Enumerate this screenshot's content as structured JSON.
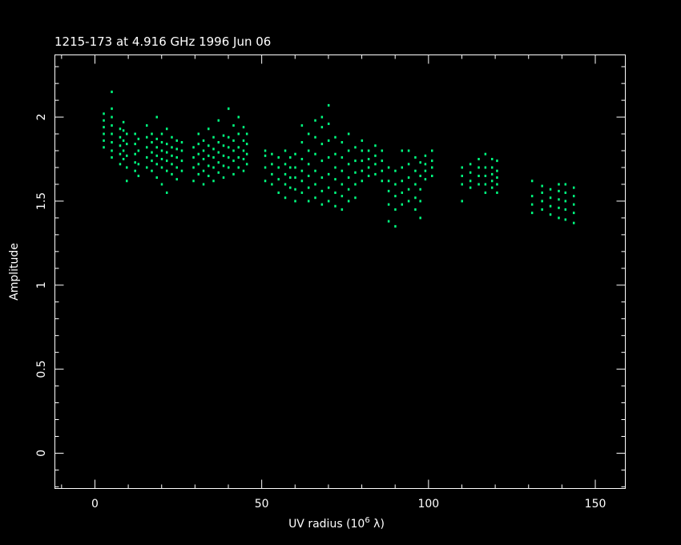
{
  "chart_data": {
    "type": "scatter",
    "title": "1215-173 at 4.916 GHz 1996 Jun 06",
    "xlabel": "UV radius  (10",
    "xlabel_sup": "6",
    "xlabel_end": " λ)",
    "ylabel": "Amplitude",
    "xlim": [
      -12,
      159
    ],
    "ylim": [
      -0.21,
      2.37
    ],
    "x_ticks": [
      0,
      50,
      100,
      150
    ],
    "x_tick_labels": [
      "0",
      "50",
      "100",
      "150"
    ],
    "y_ticks": [
      0,
      0.5,
      1,
      1.5,
      2
    ],
    "y_tick_labels": [
      "0",
      "0.5",
      "1",
      "1.5",
      "2"
    ],
    "x_minor_step": 10,
    "y_minor_step": 0.1,
    "grid": false,
    "colors": {
      "background": "#000000",
      "axes": "#ffffff",
      "points": "#00ff80"
    },
    "strips": [
      {
        "uv": 2.6,
        "amp": [
          1.82,
          1.86,
          1.9,
          1.94,
          1.98,
          2.02
        ]
      },
      {
        "uv": 5.0,
        "amp": [
          1.76,
          1.8,
          1.85,
          1.9,
          1.95,
          2.0,
          2.05,
          2.15
        ]
      },
      {
        "uv": 7.5,
        "amp": [
          1.72,
          1.78,
          1.83,
          1.88,
          1.93
        ]
      },
      {
        "uv": 8.5,
        "amp": [
          1.75,
          1.8,
          1.86,
          1.92,
          1.97
        ]
      },
      {
        "uv": 9.5,
        "amp": [
          1.62,
          1.7,
          1.77,
          1.84,
          1.9
        ]
      },
      {
        "uv": 12,
        "amp": [
          1.68,
          1.73,
          1.78,
          1.84,
          1.9
        ]
      },
      {
        "uv": 13,
        "amp": [
          1.65,
          1.72,
          1.8,
          1.87
        ]
      },
      {
        "uv": 15.5,
        "amp": [
          1.7,
          1.76,
          1.82,
          1.88,
          1.95
        ]
      },
      {
        "uv": 17,
        "amp": [
          1.68,
          1.74,
          1.79,
          1.85,
          1.9
        ]
      },
      {
        "uv": 18.5,
        "amp": [
          1.64,
          1.72,
          1.77,
          1.82,
          1.87,
          2.0
        ]
      },
      {
        "uv": 20,
        "amp": [
          1.6,
          1.7,
          1.75,
          1.8,
          1.85,
          1.9
        ]
      },
      {
        "uv": 21.5,
        "amp": [
          1.55,
          1.68,
          1.74,
          1.79,
          1.84,
          1.93
        ]
      },
      {
        "uv": 23,
        "amp": [
          1.66,
          1.72,
          1.77,
          1.82,
          1.88
        ]
      },
      {
        "uv": 24.5,
        "amp": [
          1.63,
          1.7,
          1.76,
          1.81,
          1.86
        ]
      },
      {
        "uv": 26,
        "amp": [
          1.68,
          1.74,
          1.8,
          1.85
        ]
      },
      {
        "uv": 29.5,
        "amp": [
          1.62,
          1.7,
          1.76,
          1.82
        ]
      },
      {
        "uv": 31,
        "amp": [
          1.66,
          1.72,
          1.78,
          1.84,
          1.9
        ]
      },
      {
        "uv": 32.5,
        "amp": [
          1.6,
          1.68,
          1.75,
          1.8,
          1.86
        ]
      },
      {
        "uv": 34,
        "amp": [
          1.65,
          1.71,
          1.77,
          1.83,
          1.93
        ]
      },
      {
        "uv": 35.5,
        "amp": [
          1.62,
          1.7,
          1.76,
          1.81,
          1.88
        ]
      },
      {
        "uv": 37,
        "amp": [
          1.67,
          1.73,
          1.79,
          1.85,
          1.98
        ]
      },
      {
        "uv": 38.5,
        "amp": [
          1.64,
          1.71,
          1.77,
          1.83,
          1.89
        ]
      },
      {
        "uv": 40,
        "amp": [
          1.7,
          1.76,
          1.82,
          1.88,
          2.05
        ]
      },
      {
        "uv": 41.5,
        "amp": [
          1.66,
          1.74,
          1.8,
          1.86,
          1.95
        ]
      },
      {
        "uv": 43,
        "amp": [
          1.7,
          1.76,
          1.82,
          1.9,
          2.0
        ]
      },
      {
        "uv": 44.5,
        "amp": [
          1.68,
          1.75,
          1.8,
          1.86,
          1.94
        ]
      },
      {
        "uv": 45.5,
        "amp": [
          1.72,
          1.78,
          1.84,
          1.9
        ]
      },
      {
        "uv": 51,
        "amp": [
          1.62,
          1.7,
          1.77,
          1.8
        ]
      },
      {
        "uv": 53,
        "amp": [
          1.6,
          1.66,
          1.72,
          1.78
        ]
      },
      {
        "uv": 55,
        "amp": [
          1.55,
          1.63,
          1.7,
          1.76
        ]
      },
      {
        "uv": 57,
        "amp": [
          1.52,
          1.6,
          1.66,
          1.72,
          1.8
        ]
      },
      {
        "uv": 58.5,
        "amp": [
          1.58,
          1.64,
          1.7,
          1.76
        ]
      },
      {
        "uv": 60,
        "amp": [
          1.5,
          1.57,
          1.64,
          1.7,
          1.78
        ]
      },
      {
        "uv": 62,
        "amp": [
          1.55,
          1.62,
          1.68,
          1.75,
          1.85,
          1.95
        ]
      },
      {
        "uv": 64,
        "amp": [
          1.5,
          1.58,
          1.65,
          1.72,
          1.8,
          1.9
        ]
      },
      {
        "uv": 66,
        "amp": [
          1.52,
          1.6,
          1.68,
          1.78,
          1.88,
          1.98
        ]
      },
      {
        "uv": 68,
        "amp": [
          1.48,
          1.56,
          1.64,
          1.74,
          1.84,
          1.94,
          2.0
        ]
      },
      {
        "uv": 70,
        "amp": [
          1.5,
          1.58,
          1.66,
          1.76,
          1.86,
          1.96,
          2.07
        ]
      },
      {
        "uv": 72,
        "amp": [
          1.47,
          1.55,
          1.63,
          1.7,
          1.78,
          1.88
        ]
      },
      {
        "uv": 74,
        "amp": [
          1.45,
          1.53,
          1.6,
          1.68,
          1.76,
          1.85
        ]
      },
      {
        "uv": 76,
        "amp": [
          1.5,
          1.57,
          1.64,
          1.72,
          1.8,
          1.9
        ]
      },
      {
        "uv": 78,
        "amp": [
          1.52,
          1.6,
          1.67,
          1.74,
          1.82
        ]
      },
      {
        "uv": 80,
        "amp": [
          1.62,
          1.68,
          1.74,
          1.8,
          1.86
        ]
      },
      {
        "uv": 82,
        "amp": [
          1.65,
          1.7,
          1.75,
          1.8
        ]
      },
      {
        "uv": 84,
        "amp": [
          1.66,
          1.72,
          1.77,
          1.83
        ]
      },
      {
        "uv": 86,
        "amp": [
          1.62,
          1.68,
          1.74,
          1.8
        ]
      },
      {
        "uv": 88,
        "amp": [
          1.38,
          1.48,
          1.56,
          1.62,
          1.7
        ]
      },
      {
        "uv": 90,
        "amp": [
          1.35,
          1.45,
          1.53,
          1.6,
          1.68
        ]
      },
      {
        "uv": 92,
        "amp": [
          1.48,
          1.55,
          1.62,
          1.7,
          1.8
        ]
      },
      {
        "uv": 94,
        "amp": [
          1.5,
          1.57,
          1.64,
          1.72,
          1.8
        ]
      },
      {
        "uv": 96,
        "amp": [
          1.45,
          1.52,
          1.6,
          1.68,
          1.76
        ]
      },
      {
        "uv": 97.5,
        "amp": [
          1.4,
          1.5,
          1.57,
          1.65,
          1.73
        ]
      },
      {
        "uv": 99,
        "amp": [
          1.63,
          1.68,
          1.72,
          1.77
        ]
      },
      {
        "uv": 101,
        "amp": [
          1.65,
          1.7,
          1.74,
          1.8
        ]
      },
      {
        "uv": 110,
        "amp": [
          1.5,
          1.6,
          1.65,
          1.7
        ]
      },
      {
        "uv": 112.5,
        "amp": [
          1.58,
          1.62,
          1.67,
          1.72
        ]
      },
      {
        "uv": 115,
        "amp": [
          1.6,
          1.65,
          1.7,
          1.75
        ]
      },
      {
        "uv": 117,
        "amp": [
          1.55,
          1.6,
          1.65,
          1.7,
          1.78
        ]
      },
      {
        "uv": 119,
        "amp": [
          1.58,
          1.62,
          1.66,
          1.7,
          1.75
        ]
      },
      {
        "uv": 120.5,
        "amp": [
          1.55,
          1.6,
          1.64,
          1.68,
          1.74
        ]
      },
      {
        "uv": 131,
        "amp": [
          1.43,
          1.48,
          1.53,
          1.62
        ]
      },
      {
        "uv": 134,
        "amp": [
          1.45,
          1.5,
          1.55,
          1.59
        ]
      },
      {
        "uv": 136.5,
        "amp": [
          1.42,
          1.47,
          1.52,
          1.57
        ]
      },
      {
        "uv": 139,
        "amp": [
          1.4,
          1.46,
          1.51,
          1.56,
          1.6
        ]
      },
      {
        "uv": 141,
        "amp": [
          1.39,
          1.45,
          1.5,
          1.55,
          1.6
        ]
      },
      {
        "uv": 143.5,
        "amp": [
          1.37,
          1.43,
          1.48,
          1.53,
          1.58
        ]
      }
    ]
  }
}
